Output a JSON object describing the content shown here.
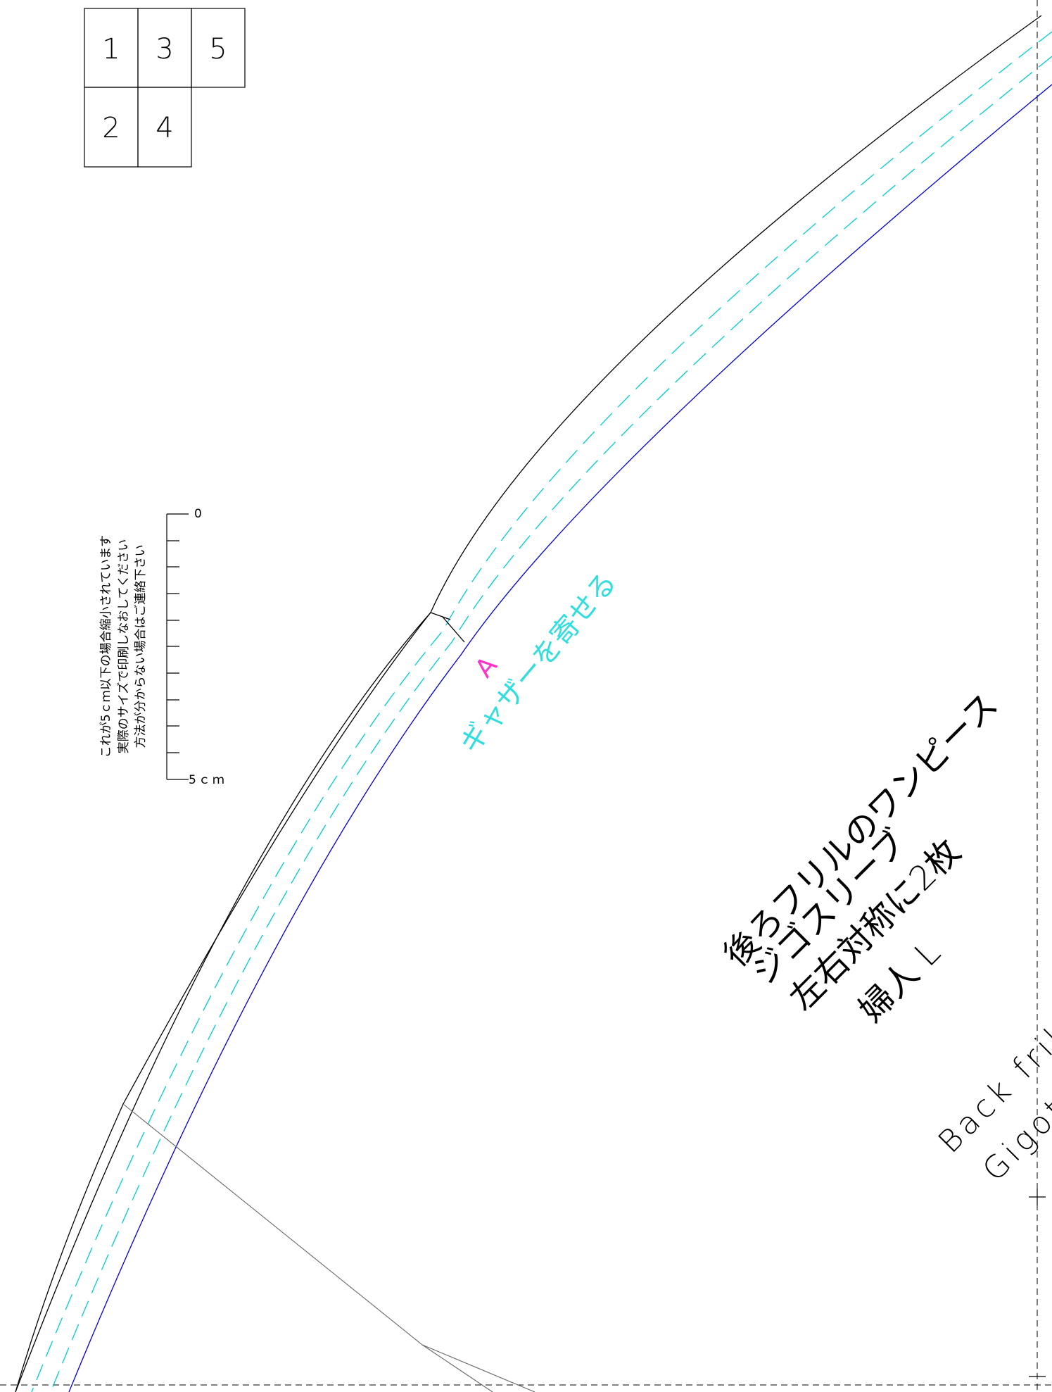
{
  "page_index": {
    "cells": [
      "1",
      "3",
      "5",
      "2",
      "4"
    ]
  },
  "scale_note": {
    "lines": [
      "これが5ｃｍ以下の場合縮小されています",
      "実際のサイズで印刷しなおしてください",
      "方法が分からない場合はご連絡下さい"
    ],
    "zero_label": "0",
    "end_label": "5ｃｍ"
  },
  "pattern": {
    "notch_label": "A",
    "gather_instruction": "ギャザーを寄せる",
    "title_lines": [
      "後ろフリルのワンピース",
      "ジゴスリーブ",
      "左右対称に2枚",
      "婦人 L"
    ],
    "english_lines": [
      "Back frill",
      "Gigot"
    ]
  },
  "colors": {
    "outline": "#000000",
    "seam_line": "#0000cc",
    "stitch_dash": "#00cccc",
    "label_magenta": "#ff33cc",
    "label_cyan": "#33dddd",
    "guide_gray": "#666666"
  }
}
